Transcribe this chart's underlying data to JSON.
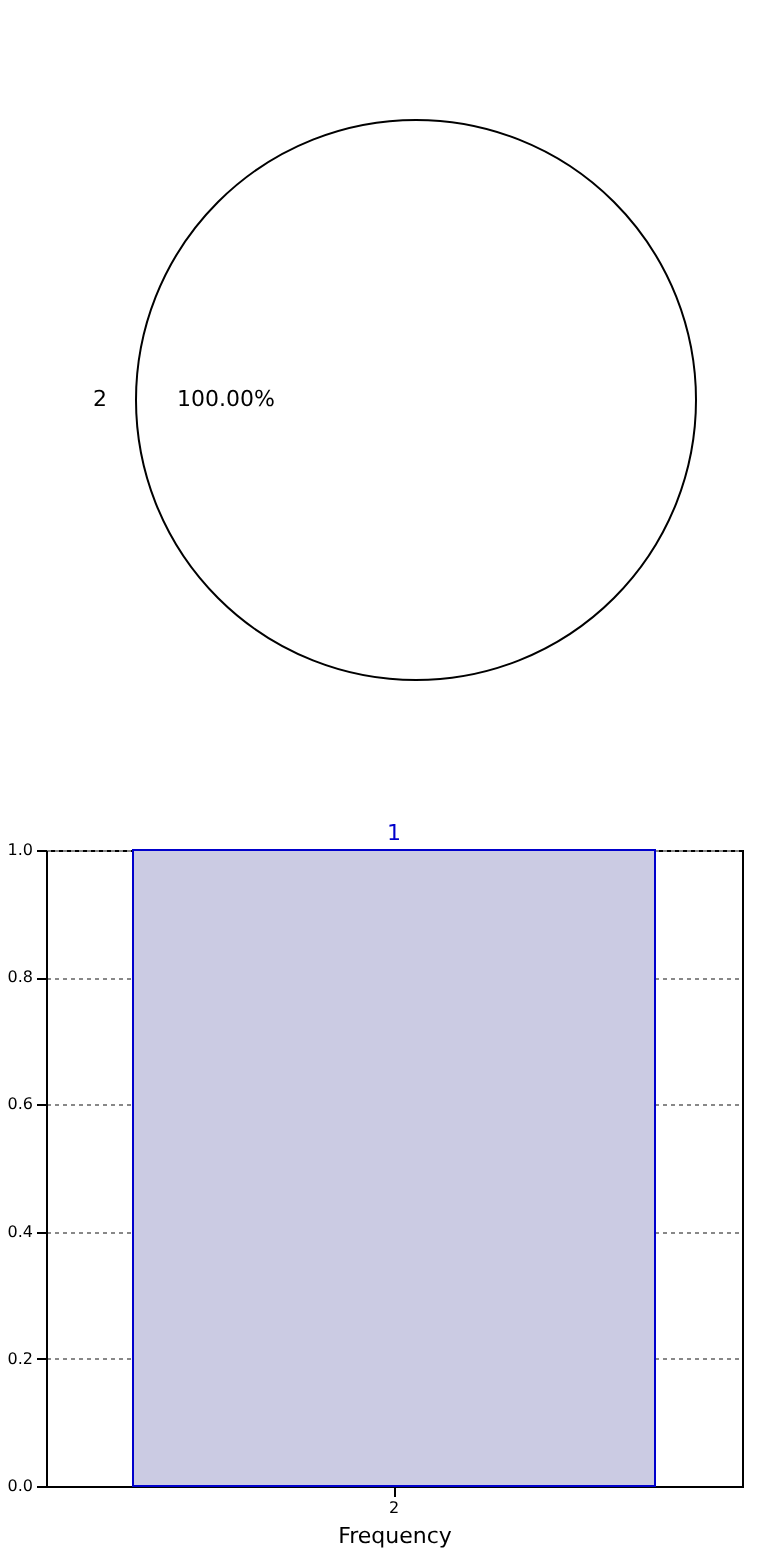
{
  "chart_data": [
    {
      "type": "pie",
      "categories": [
        "2"
      ],
      "values": [
        100
      ],
      "colors": [
        "#ffffff"
      ],
      "value_labels": [
        "100.00%"
      ]
    },
    {
      "type": "bar",
      "categories": [
        "2"
      ],
      "values": [
        1
      ],
      "color": "#cbcbe3",
      "data_labels": true,
      "xlabel": "Frequency",
      "ylim": [
        0,
        1
      ],
      "yticks": [
        {
          "value": 0,
          "label": "0.0"
        },
        {
          "value": 0.2,
          "label": "0.2"
        },
        {
          "value": 0.4,
          "label": "0.4"
        },
        {
          "value": 0.6,
          "label": "0.6"
        },
        {
          "value": 0.8,
          "label": "0.8"
        },
        {
          "value": 1,
          "label": "1.0"
        }
      ],
      "grid": true
    }
  ]
}
